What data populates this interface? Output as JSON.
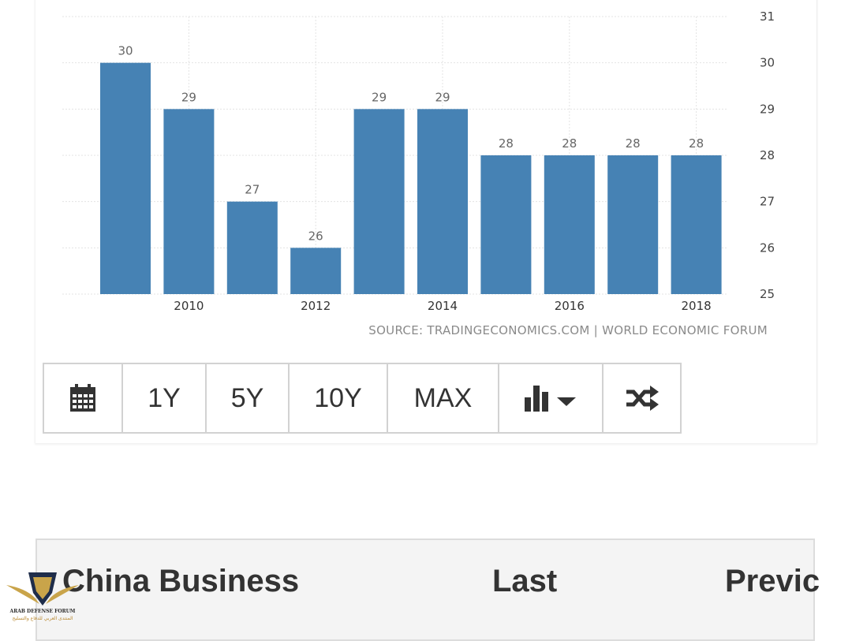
{
  "chart_data": {
    "type": "bar",
    "categories": [
      "2009",
      "2010",
      "2011",
      "2012",
      "2013",
      "2014",
      "2015",
      "2016",
      "2017",
      "2018"
    ],
    "values": [
      30,
      29,
      27,
      26,
      29,
      29,
      28,
      28,
      28,
      28
    ],
    "data_labels": [
      "30",
      "29",
      "27",
      "26",
      "29",
      "29",
      "28",
      "28",
      "28",
      "28"
    ],
    "x_tick_labels": [
      "2010",
      "2012",
      "2014",
      "2016",
      "2018"
    ],
    "y_tick_labels": [
      "25",
      "26",
      "27",
      "28",
      "29",
      "30",
      "31"
    ],
    "ylim": [
      25,
      31
    ],
    "y_axis_side": "right",
    "grid": true,
    "bar_color": "#4682b4",
    "title": "",
    "xlabel": "",
    "ylabel": ""
  },
  "source": "SOURCE: TRADINGECONOMICS.COM | WORLD ECONOMIC FORUM",
  "toolbar": {
    "calendar_icon": "calendar-icon",
    "range_buttons": [
      "1Y",
      "5Y",
      "10Y",
      "MAX"
    ],
    "chart_type_icon": "bar-chart-dropdown-icon",
    "shuffle_icon": "shuffle-icon"
  },
  "table": {
    "headers": [
      "China Business",
      "Last",
      "Previc"
    ]
  },
  "watermark": {
    "logo_text": "ARAB DEFENSE FORUM",
    "logo_text_arabic": "المنتدى العربي للدفاع والتسليح"
  }
}
